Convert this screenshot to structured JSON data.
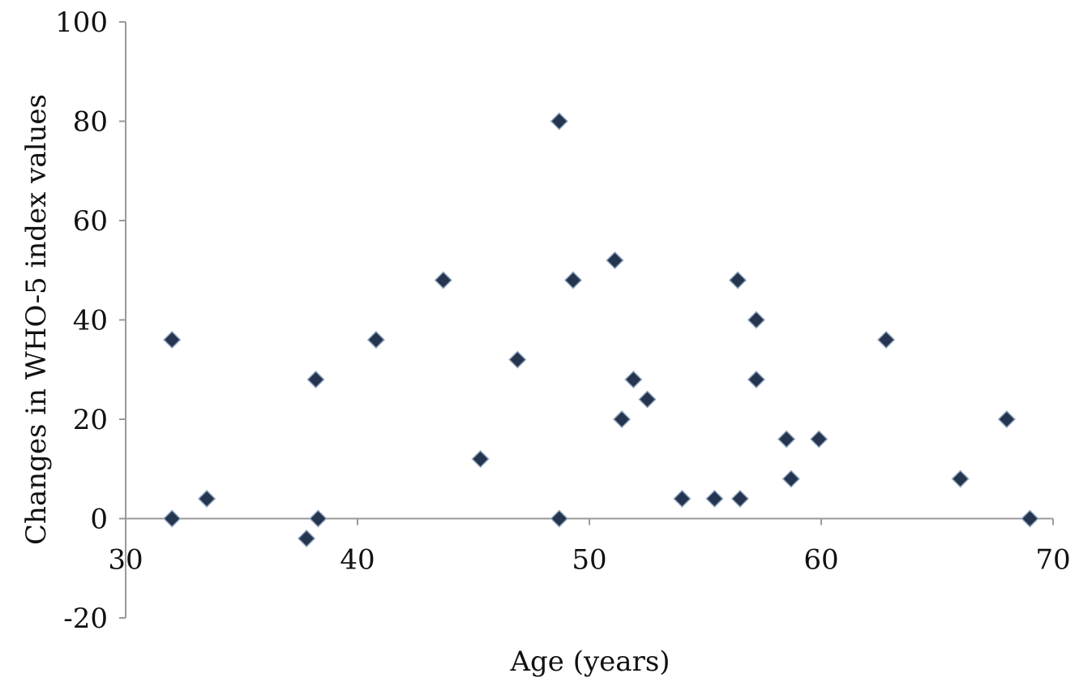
{
  "chart_data": {
    "type": "scatter",
    "title": "",
    "xlabel": "Age (years)",
    "ylabel": "Changes in WHO-5 index values",
    "xlim": [
      30,
      70
    ],
    "ylim": [
      -20,
      100
    ],
    "x_ticks": [
      30,
      40,
      50,
      60,
      70
    ],
    "y_ticks": [
      -20,
      0,
      20,
      40,
      60,
      80,
      100
    ],
    "grid": false,
    "legend": "none",
    "marker": "diamond",
    "marker_color": "#25344f",
    "series": [
      {
        "points": [
          {
            "x": 32.0,
            "y": 36
          },
          {
            "x": 32.0,
            "y": 0
          },
          {
            "x": 33.5,
            "y": 4
          },
          {
            "x": 37.8,
            "y": -4
          },
          {
            "x": 38.2,
            "y": 28
          },
          {
            "x": 38.3,
            "y": 0
          },
          {
            "x": 40.8,
            "y": 36
          },
          {
            "x": 43.7,
            "y": 48
          },
          {
            "x": 45.3,
            "y": 12
          },
          {
            "x": 46.9,
            "y": 32
          },
          {
            "x": 48.7,
            "y": 80
          },
          {
            "x": 48.7,
            "y": 0
          },
          {
            "x": 49.3,
            "y": 48
          },
          {
            "x": 51.1,
            "y": 52
          },
          {
            "x": 51.4,
            "y": 20
          },
          {
            "x": 51.9,
            "y": 28
          },
          {
            "x": 52.5,
            "y": 24
          },
          {
            "x": 54.0,
            "y": 4
          },
          {
            "x": 55.4,
            "y": 4
          },
          {
            "x": 56.4,
            "y": 48
          },
          {
            "x": 56.5,
            "y": 4
          },
          {
            "x": 57.2,
            "y": 40
          },
          {
            "x": 57.2,
            "y": 28
          },
          {
            "x": 58.5,
            "y": 16
          },
          {
            "x": 58.7,
            "y": 8
          },
          {
            "x": 59.9,
            "y": 16
          },
          {
            "x": 62.8,
            "y": 36
          },
          {
            "x": 66.0,
            "y": 8
          },
          {
            "x": 68.0,
            "y": 20
          },
          {
            "x": 69.0,
            "y": 0
          }
        ]
      }
    ]
  }
}
